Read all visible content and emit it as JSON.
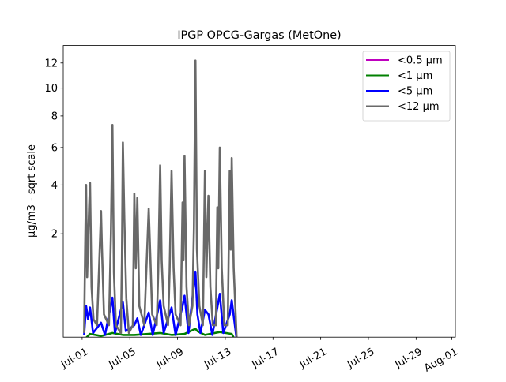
{
  "chart_data": {
    "type": "line",
    "title": "IPGP OPCG-Gargas (MetOne)",
    "xlabel": "",
    "ylabel": "µg/m3 - sqrt scale",
    "yscale": "sqrt",
    "ylim": [
      0.03,
      13.5
    ],
    "xlim": [
      "06-29 10:00",
      "08-01 07:00"
    ],
    "yticks": [
      2,
      4,
      6,
      8,
      10,
      12
    ],
    "xticks": [
      {
        "date": "07-01 00:00",
        "label": "Jul-01"
      },
      {
        "date": "07-05 00:00",
        "label": "Jul-05"
      },
      {
        "date": "07-09 00:00",
        "label": "Jul-09"
      },
      {
        "date": "07-13 00:00",
        "label": "Jul-13"
      },
      {
        "date": "07-17 00:00",
        "label": "Jul-17"
      },
      {
        "date": "07-21 00:00",
        "label": "Jul-21"
      },
      {
        "date": "07-25 00:00",
        "label": "Jul-25"
      },
      {
        "date": "07-29 00:00",
        "label": "Jul-29"
      },
      {
        "date": "08-01 00:00",
        "label": "Aug-01"
      }
    ],
    "grid": false,
    "legend_position": "upper-right",
    "series": [
      {
        "name": "<0.5 µm",
        "color": "#bf00bf",
        "points": [
          [
            "07-01 08:00",
            0.01
          ],
          [
            "07-03 13:00",
            0.012
          ],
          [
            "07-07 13:00",
            0.012
          ],
          [
            "07-10 12:00",
            0.02
          ],
          [
            "07-13 13:00",
            0.012
          ],
          [
            "07-13 23:00",
            0.005
          ]
        ]
      },
      {
        "name": "<1 µm",
        "color": "#008000",
        "points": [
          [
            "07-01 04:00",
            0.02
          ],
          [
            "07-01 16:00",
            0.045
          ],
          [
            "07-02 14:00",
            0.035
          ],
          [
            "07-03 13:00",
            0.05
          ],
          [
            "07-04 10:00",
            0.04
          ],
          [
            "07-05 09:00",
            0.04
          ],
          [
            "07-06 14:00",
            0.045
          ],
          [
            "07-07 13:00",
            0.05
          ],
          [
            "07-08 12:00",
            0.04
          ],
          [
            "07-09 14:00",
            0.045
          ],
          [
            "07-10 12:00",
            0.075
          ],
          [
            "07-10 16:00",
            0.06
          ],
          [
            "07-11 07:00",
            0.04
          ],
          [
            "07-12 13:00",
            0.055
          ],
          [
            "07-13 13:00",
            0.045
          ],
          [
            "07-13 23:00",
            0.01
          ]
        ]
      },
      {
        "name": "<5 µm",
        "color": "#0000ff",
        "points": [
          [
            "07-01 04:00",
            0.04
          ],
          [
            "07-01 08:00",
            0.3
          ],
          [
            "07-01 12:00",
            0.15
          ],
          [
            "07-01 16:00",
            0.28
          ],
          [
            "07-01 22:00",
            0.05
          ],
          [
            "07-02 14:00",
            0.12
          ],
          [
            "07-02 22:00",
            0.04
          ],
          [
            "07-03 13:00",
            0.42
          ],
          [
            "07-03 18:00",
            0.05
          ],
          [
            "07-04 10:00",
            0.35
          ],
          [
            "07-04 16:00",
            0.06
          ],
          [
            "07-05 09:00",
            0.1
          ],
          [
            "07-05 15:00",
            0.16
          ],
          [
            "07-05 22:00",
            0.04
          ],
          [
            "07-06 14:00",
            0.22
          ],
          [
            "07-06 22:00",
            0.04
          ],
          [
            "07-07 13:00",
            0.38
          ],
          [
            "07-07 20:00",
            0.05
          ],
          [
            "07-08 12:00",
            0.28
          ],
          [
            "07-08 20:00",
            0.04
          ],
          [
            "07-09 10:00",
            0.3
          ],
          [
            "07-09 14:00",
            0.45
          ],
          [
            "07-09 22:00",
            0.05
          ],
          [
            "07-10 12:00",
            0.92
          ],
          [
            "07-10 16:00",
            0.2
          ],
          [
            "07-10 22:00",
            0.05
          ],
          [
            "07-11 07:00",
            0.25
          ],
          [
            "07-11 14:00",
            0.2
          ],
          [
            "07-11 22:00",
            0.04
          ],
          [
            "07-12 13:00",
            0.48
          ],
          [
            "07-12 20:00",
            0.05
          ],
          [
            "07-13 09:00",
            0.2
          ],
          [
            "07-13 13:00",
            0.38
          ],
          [
            "07-13 23:00",
            0.02
          ]
        ]
      },
      {
        "name": "<12 µm",
        "color": "#696969",
        "points": [
          [
            "07-01 04:00",
            0.05
          ],
          [
            "07-01 06:00",
            1.5
          ],
          [
            "07-01 08:00",
            4.0
          ],
          [
            "07-01 10:00",
            0.8
          ],
          [
            "07-01 14:00",
            3.0
          ],
          [
            "07-01 16:00",
            4.1
          ],
          [
            "07-01 19:00",
            0.6
          ],
          [
            "07-01 23:00",
            0.15
          ],
          [
            "07-02 06:00",
            0.1
          ],
          [
            "07-02 10:00",
            1.0
          ],
          [
            "07-02 14:00",
            2.85
          ],
          [
            "07-02 16:00",
            1.5
          ],
          [
            "07-02 20:00",
            0.2
          ],
          [
            "07-03 06:00",
            0.1
          ],
          [
            "07-03 10:00",
            2.0
          ],
          [
            "07-03 13:00",
            7.4
          ],
          [
            "07-03 16:00",
            0.9
          ],
          [
            "07-03 20:00",
            0.1
          ],
          [
            "07-04 06:00",
            0.05
          ],
          [
            "07-04 08:00",
            1.2
          ],
          [
            "07-04 10:00",
            6.3
          ],
          [
            "07-04 13:00",
            2.5
          ],
          [
            "07-04 17:00",
            0.4
          ],
          [
            "07-04 22:00",
            0.05
          ],
          [
            "07-05 06:00",
            0.1
          ],
          [
            "07-05 09:00",
            3.6
          ],
          [
            "07-05 12:00",
            1.0
          ],
          [
            "07-05 15:00",
            3.4
          ],
          [
            "07-05 19:00",
            0.3
          ],
          [
            "07-06 05:00",
            0.1
          ],
          [
            "07-06 09:00",
            0.9
          ],
          [
            "07-06 14:00",
            2.95
          ],
          [
            "07-06 17:00",
            1.4
          ],
          [
            "07-06 21:00",
            0.2
          ],
          [
            "07-07 06:00",
            0.1
          ],
          [
            "07-07 09:00",
            0.9
          ],
          [
            "07-07 13:00",
            5.0
          ],
          [
            "07-07 16:00",
            1.2
          ],
          [
            "07-07 20:00",
            0.3
          ],
          [
            "07-08 05:00",
            0.1
          ],
          [
            "07-08 08:00",
            0.9
          ],
          [
            "07-08 12:00",
            4.7
          ],
          [
            "07-08 16:00",
            1.0
          ],
          [
            "07-08 20:00",
            0.2
          ],
          [
            "07-09 06:00",
            0.1
          ],
          [
            "07-09 10:00",
            3.2
          ],
          [
            "07-09 12:00",
            1.2
          ],
          [
            "07-09 14:00",
            5.5
          ],
          [
            "07-09 18:00",
            0.6
          ],
          [
            "07-09 23:00",
            0.1
          ],
          [
            "07-10 06:00",
            0.3
          ],
          [
            "07-10 09:00",
            2.2
          ],
          [
            "07-10 12:00",
            12.2
          ],
          [
            "07-10 15:00",
            1.5
          ],
          [
            "07-10 20:00",
            0.3
          ],
          [
            "07-11 03:00",
            0.1
          ],
          [
            "07-11 07:00",
            4.7
          ],
          [
            "07-11 10:00",
            0.8
          ],
          [
            "07-11 14:00",
            3.5
          ],
          [
            "07-11 18:00",
            0.6
          ],
          [
            "07-11 23:00",
            0.1
          ],
          [
            "07-12 05:00",
            0.1
          ],
          [
            "07-12 08:00",
            3.0
          ],
          [
            "07-12 10:00",
            1.0
          ],
          [
            "07-12 13:00",
            6.0
          ],
          [
            "07-12 17:00",
            1.0
          ],
          [
            "07-12 22:00",
            0.1
          ],
          [
            "07-13 05:00",
            0.1
          ],
          [
            "07-13 09:00",
            4.7
          ],
          [
            "07-13 11:00",
            1.5
          ],
          [
            "07-13 13:00",
            5.4
          ],
          [
            "07-13 17:00",
            1.0
          ],
          [
            "07-13 23:00",
            0.02
          ]
        ]
      }
    ]
  }
}
